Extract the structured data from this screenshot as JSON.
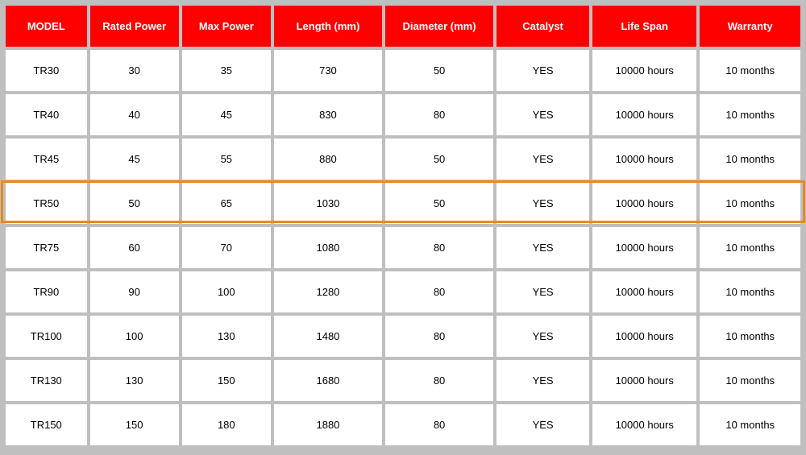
{
  "table": {
    "columns": [
      {
        "key": "model",
        "label": "MODEL",
        "cls": "col-model"
      },
      {
        "key": "rated_power",
        "label": "Rated Power",
        "cls": "col-rated"
      },
      {
        "key": "max_power",
        "label": "Max Power",
        "cls": "col-max"
      },
      {
        "key": "length",
        "label": "Length (mm)",
        "cls": "col-length"
      },
      {
        "key": "diameter",
        "label": "Diameter (mm)",
        "cls": "col-diameter"
      },
      {
        "key": "catalyst",
        "label": "Catalyst",
        "cls": "col-catalyst"
      },
      {
        "key": "life_span",
        "label": "Life Span",
        "cls": "col-life"
      },
      {
        "key": "warranty",
        "label": "Warranty",
        "cls": "col-warranty"
      }
    ],
    "rows": [
      {
        "model": "TR30",
        "rated_power": "30",
        "max_power": "35",
        "length": "730",
        "diameter": "50",
        "catalyst": "YES",
        "life_span": "10000 hours",
        "warranty": "10 months"
      },
      {
        "model": "TR40",
        "rated_power": "40",
        "max_power": "45",
        "length": "830",
        "diameter": "80",
        "catalyst": "YES",
        "life_span": "10000 hours",
        "warranty": "10 months"
      },
      {
        "model": "TR45",
        "rated_power": "45",
        "max_power": "55",
        "length": "880",
        "diameter": "50",
        "catalyst": "YES",
        "life_span": "10000 hours",
        "warranty": "10 months"
      },
      {
        "model": "TR50",
        "rated_power": "50",
        "max_power": "65",
        "length": "1030",
        "diameter": "50",
        "catalyst": "YES",
        "life_span": "10000 hours",
        "warranty": "10 months"
      },
      {
        "model": "TR75",
        "rated_power": "60",
        "max_power": "70",
        "length": "1080",
        "diameter": "80",
        "catalyst": "YES",
        "life_span": "10000 hours",
        "warranty": "10 months"
      },
      {
        "model": "TR90",
        "rated_power": "90",
        "max_power": "100",
        "length": "1280",
        "diameter": "80",
        "catalyst": "YES",
        "life_span": "10000 hours",
        "warranty": "10 months"
      },
      {
        "model": "TR100",
        "rated_power": "100",
        "max_power": "130",
        "length": "1480",
        "diameter": "80",
        "catalyst": "YES",
        "life_span": "10000 hours",
        "warranty": "10 months"
      },
      {
        "model": "TR130",
        "rated_power": "130",
        "max_power": "150",
        "length": "1680",
        "diameter": "80",
        "catalyst": "YES",
        "life_span": "10000 hours",
        "warranty": "10 months"
      },
      {
        "model": "TR150",
        "rated_power": "150",
        "max_power": "180",
        "length": "1880",
        "diameter": "80",
        "catalyst": "YES",
        "life_span": "10000 hours",
        "warranty": "10 months"
      }
    ],
    "highlighted_row_index": 3,
    "header_bg": "#ff0000",
    "header_fg": "#ffffff",
    "cell_bg": "#ffffff",
    "page_bg": "#bfbfbf",
    "highlight_border_color": "#e88a1f",
    "font_size_header": 13,
    "font_size_cell": 13
  }
}
